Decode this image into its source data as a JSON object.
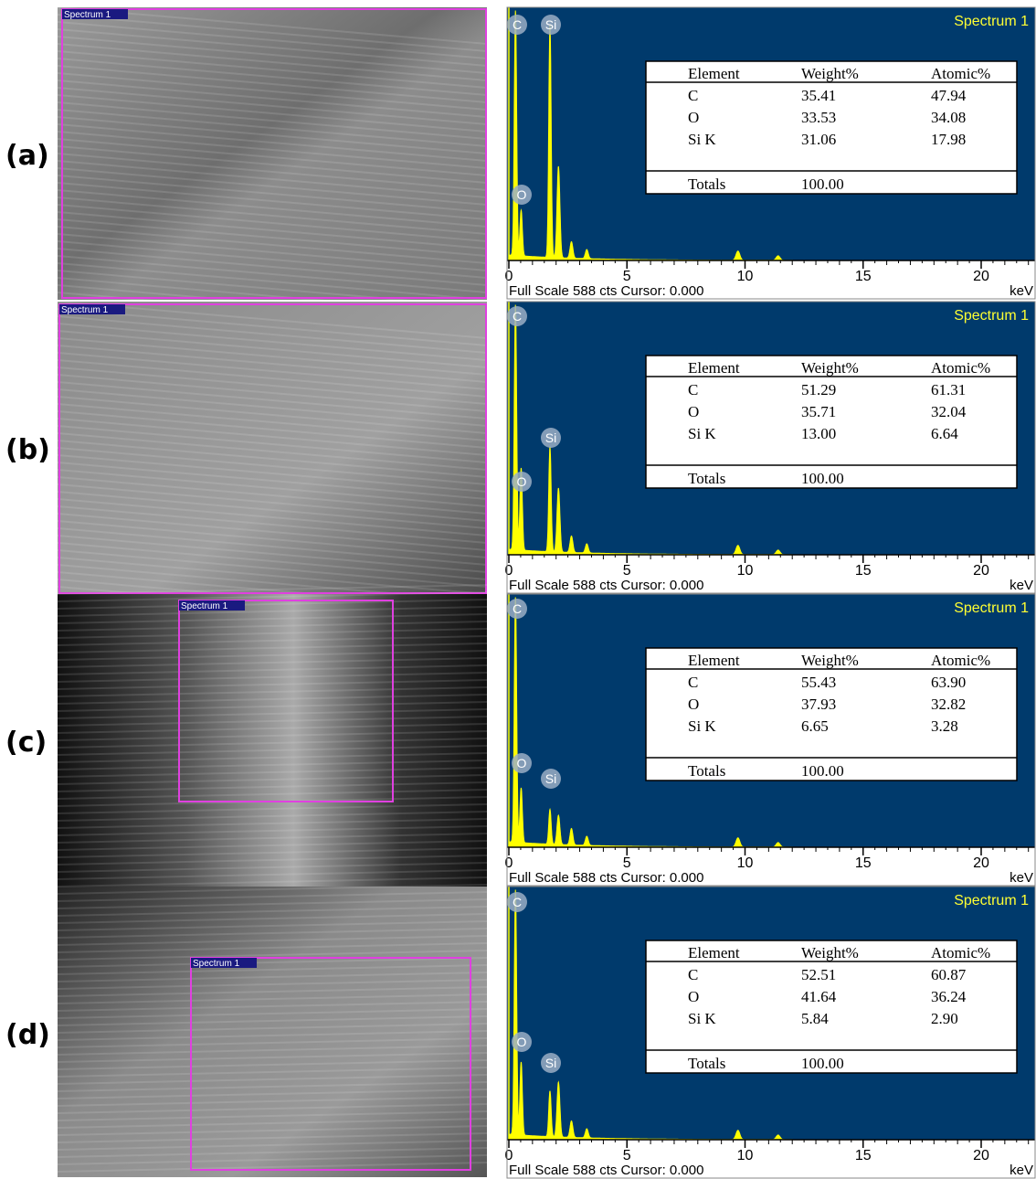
{
  "panels": [
    {
      "label": "(a)",
      "image_tag": "Spectrum 1",
      "spectrum": {
        "title": "Spectrum 1",
        "peaks": [
          "C",
          "Si",
          "O"
        ],
        "table": {
          "header": [
            "Element",
            "Weight%",
            "Atomic%"
          ],
          "rows": [
            [
              "C",
              "35.41",
              "47.94"
            ],
            [
              "O",
              "33.53",
              "34.08"
            ],
            [
              "Si K",
              "31.06",
              "17.98"
            ]
          ],
          "totals": [
            "Totals",
            "100.00"
          ]
        },
        "xticks": [
          0,
          5,
          10,
          15,
          20
        ],
        "xlabel": "keV",
        "footer": "Full Scale 588 cts Cursor: 0.000"
      }
    },
    {
      "label": "(b)",
      "image_tag": "Spectrum 1",
      "spectrum": {
        "title": "Spectrum 1",
        "peaks": [
          "C",
          "Si",
          "O"
        ],
        "table": {
          "header": [
            "Element",
            "Weight%",
            "Atomic%"
          ],
          "rows": [
            [
              "C",
              "51.29",
              "61.31"
            ],
            [
              "O",
              "35.71",
              "32.04"
            ],
            [
              "Si K",
              "13.00",
              "6.64"
            ]
          ],
          "totals": [
            "Totals",
            "100.00"
          ]
        },
        "xticks": [
          0,
          5,
          10,
          15,
          20
        ],
        "xlabel": "keV",
        "footer": "Full Scale 588 cts Cursor: 0.000"
      }
    },
    {
      "label": "(c)",
      "image_tag": "Spectrum 1",
      "spectrum": {
        "title": "Spectrum 1",
        "peaks": [
          "C",
          "Si",
          "O"
        ],
        "table": {
          "header": [
            "Element",
            "Weight%",
            "Atomic%"
          ],
          "rows": [
            [
              "C",
              "55.43",
              "63.90"
            ],
            [
              "O",
              "37.93",
              "32.82"
            ],
            [
              "Si K",
              "6.65",
              "3.28"
            ]
          ],
          "totals": [
            "Totals",
            "100.00"
          ]
        },
        "xticks": [
          0,
          5,
          10,
          15,
          20
        ],
        "xlabel": "keV",
        "footer": "Full Scale 588 cts Cursor: 0.000"
      }
    },
    {
      "label": "(d)",
      "image_tag": "Spectrum 1",
      "spectrum": {
        "title": "Spectrum 1",
        "peaks": [
          "C",
          "Si",
          "O"
        ],
        "table": {
          "header": [
            "Element",
            "Weight%",
            "Atomic%"
          ],
          "rows": [
            [
              "C",
              "52.51",
              "60.87"
            ],
            [
              "O",
              "41.64",
              "36.24"
            ],
            [
              "Si K",
              "5.84",
              "2.90"
            ]
          ],
          "totals": [
            "Totals",
            "100.00"
          ]
        },
        "xticks": [
          0,
          5,
          10,
          15,
          20
        ],
        "xlabel": "keV",
        "footer": "Full Scale 588 cts Cursor: 0.000"
      }
    }
  ]
}
